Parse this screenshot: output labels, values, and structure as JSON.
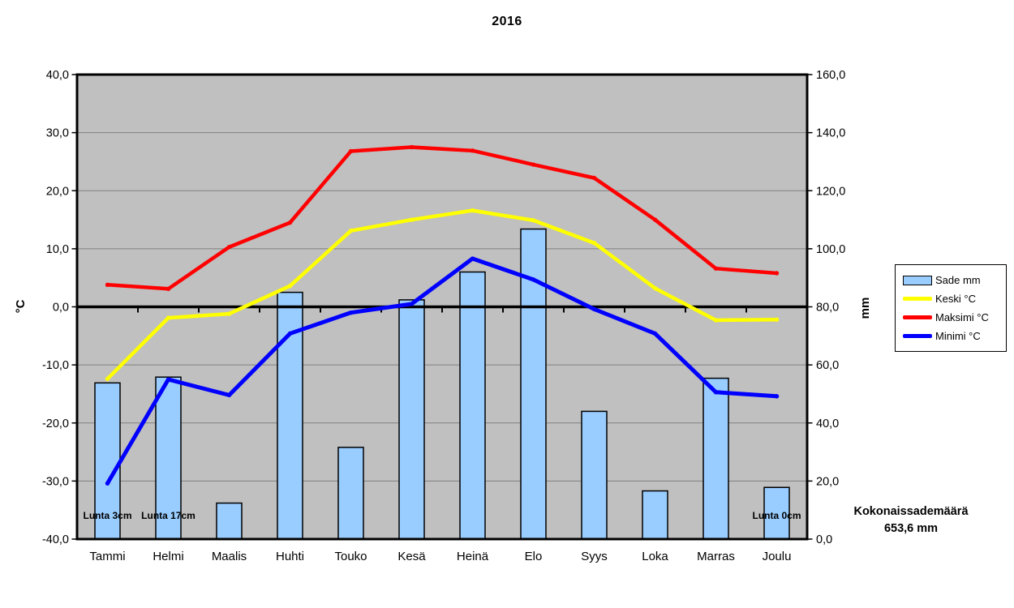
{
  "title": "2016",
  "axes": {
    "left": {
      "label": "°C",
      "ticks": [
        "40,0",
        "30,0",
        "20,0",
        "10,0",
        "0,0",
        "-10,0",
        "-20,0",
        "-30,0",
        "-40,0"
      ]
    },
    "right": {
      "label": "mm",
      "ticks": [
        "160,0",
        "140,0",
        "120,0",
        "100,0",
        "80,0",
        "60,0",
        "40,0",
        "20,0",
        "0,0"
      ]
    }
  },
  "colors": {
    "plot_bg": "#C0C0C0",
    "gridline": "#808080",
    "axis": "#000000",
    "bar_fill": "#99CCFF",
    "bar_border": "#000000",
    "keski": "#FFFF00",
    "maksimi": "#FF0000",
    "minimi": "#0000FF",
    "legend_bg": "#FFFFFF"
  },
  "chart_data": {
    "type": "bar+line combo, dual axis",
    "title": "2016",
    "categories": [
      "Tammi",
      "Helmi",
      "Maalis",
      "Huhti",
      "Touko",
      "Kesä",
      "Heinä",
      "Elo",
      "Syys",
      "Loka",
      "Marras",
      "Joulu"
    ],
    "ylim_left": [
      -40,
      40
    ],
    "ylim_right": [
      0,
      160
    ],
    "ylabel_left": "°C",
    "ylabel_right": "mm",
    "grid": "horizontal gridlines every 10 °C / 20 mm, zero line emphasized",
    "legend_position": "right",
    "series": [
      {
        "name": "Sade mm",
        "type": "bar",
        "axis": "right",
        "values": [
          53.8,
          55.8,
          12.4,
          85.0,
          31.6,
          82.4,
          92.0,
          106.8,
          44.0,
          16.6,
          55.4,
          17.8
        ]
      },
      {
        "name": "Keski °C",
        "type": "line",
        "axis": "left",
        "values": [
          -12.4,
          -1.9,
          -1.2,
          3.6,
          13.1,
          15.0,
          16.6,
          14.9,
          11.0,
          3.2,
          -2.3,
          -2.2
        ]
      },
      {
        "name": "Maksimi °C",
        "type": "line",
        "axis": "left",
        "values": [
          3.8,
          3.1,
          10.3,
          14.5,
          26.8,
          27.5,
          26.9,
          24.5,
          22.2,
          15.0,
          6.6,
          5.8
        ]
      },
      {
        "name": "Minimi °C",
        "type": "line",
        "axis": "left",
        "values": [
          -30.4,
          -12.5,
          -15.2,
          -4.6,
          -1.0,
          0.5,
          8.3,
          4.7,
          -0.4,
          -4.6,
          -14.7,
          -15.4
        ]
      }
    ],
    "annotations": [
      {
        "category": "Tammi",
        "text": "Lunta 3cm"
      },
      {
        "category": "Helmi",
        "text": "Lunta 17cm"
      },
      {
        "category": "Joulu",
        "text": "Lunta 0cm"
      }
    ]
  },
  "total_label": {
    "line1": "Kokonaissademäärä",
    "line2": "653,6 mm"
  }
}
